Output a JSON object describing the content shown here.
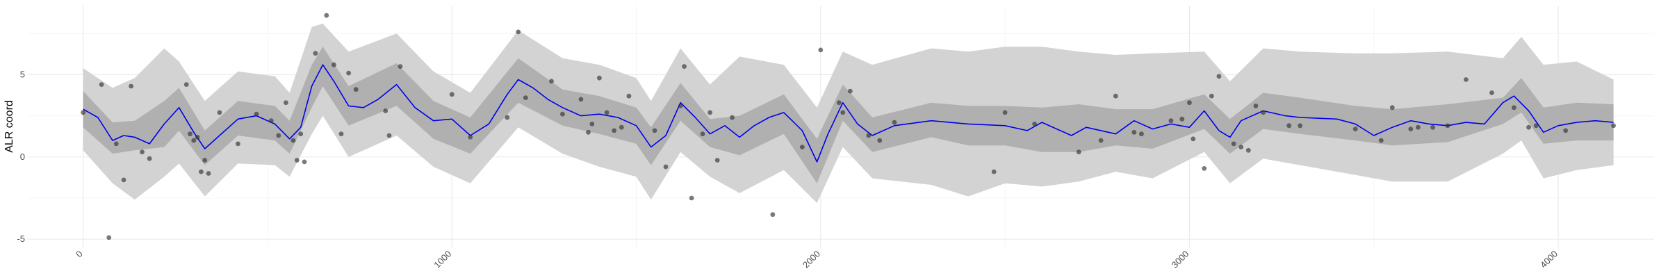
{
  "chart_data": {
    "type": "line",
    "title": "",
    "xlabel": "",
    "ylabel": "ALR coord",
    "xlim": [
      -150,
      4260
    ],
    "ylim": [
      -5.5,
      9.2
    ],
    "x_ticks": [
      0,
      1000,
      2000,
      3000,
      4000
    ],
    "x_tick_labels": [
      "0",
      "1000",
      "2000",
      "3000",
      "4000"
    ],
    "y_ticks": [
      -5,
      0,
      5
    ],
    "y_tick_labels": [
      "-5",
      "0",
      "5"
    ],
    "grid": true,
    "legend": "none",
    "colors": {
      "mean_line": "#0000ee",
      "band_outer": "#d3d3d3",
      "band_inner": "#b0b0b0",
      "points": "#333333",
      "grid_major": "#ebebeb",
      "grid_minor": "#f5f5f5"
    },
    "mean": {
      "x": [
        0,
        40,
        80,
        110,
        140,
        180,
        220,
        260,
        300,
        330,
        370,
        420,
        470,
        520,
        560,
        590,
        620,
        650,
        680,
        720,
        760,
        800,
        850,
        900,
        950,
        1000,
        1050,
        1100,
        1150,
        1180,
        1220,
        1260,
        1300,
        1350,
        1400,
        1450,
        1500,
        1540,
        1580,
        1620,
        1660,
        1700,
        1740,
        1780,
        1820,
        1860,
        1900,
        1950,
        1990,
        2020,
        2060,
        2100,
        2140,
        2200,
        2300,
        2400,
        2500,
        2560,
        2600,
        2680,
        2720,
        2800,
        2850,
        2900,
        2950,
        3000,
        3040,
        3080,
        3110,
        3140,
        3200,
        3260,
        3300,
        3400,
        3450,
        3500,
        3550,
        3600,
        3650,
        3700,
        3750,
        3800,
        3850,
        3880,
        3920,
        3960,
        4000,
        4050,
        4100,
        4150
      ],
      "y": [
        2.9,
        2.4,
        1.0,
        1.3,
        1.2,
        0.8,
        2.0,
        3.0,
        1.5,
        0.5,
        1.3,
        2.3,
        2.5,
        2.0,
        1.1,
        1.8,
        4.3,
        5.6,
        4.6,
        3.1,
        3.0,
        3.5,
        4.4,
        3.0,
        2.2,
        2.3,
        1.3,
        2.0,
        3.8,
        4.7,
        4.2,
        3.5,
        3.0,
        2.5,
        2.6,
        2.4,
        1.9,
        0.6,
        1.3,
        3.3,
        2.4,
        1.4,
        1.9,
        1.2,
        1.9,
        2.4,
        2.7,
        1.6,
        -0.3,
        1.4,
        3.3,
        2.0,
        1.3,
        1.9,
        2.2,
        2.0,
        1.9,
        1.6,
        2.1,
        1.3,
        1.8,
        1.4,
        2.2,
        1.7,
        2.0,
        1.8,
        2.8,
        1.6,
        1.2,
        2.2,
        2.8,
        2.5,
        2.4,
        2.3,
        2.0,
        1.3,
        1.8,
        2.2,
        2.0,
        1.9,
        2.1,
        2.0,
        3.3,
        3.7,
        2.8,
        1.5,
        1.9,
        2.1,
        2.2,
        2.1
      ]
    },
    "band_inner": {
      "x": [
        0,
        80,
        140,
        220,
        260,
        330,
        420,
        520,
        560,
        620,
        650,
        720,
        850,
        950,
        1050,
        1180,
        1300,
        1400,
        1500,
        1540,
        1620,
        1700,
        1780,
        1900,
        1990,
        2060,
        2140,
        2300,
        2400,
        2500,
        2600,
        2700,
        2800,
        2900,
        3040,
        3110,
        3200,
        3300,
        3450,
        3550,
        3700,
        3850,
        3900,
        3960,
        4050,
        4150
      ],
      "lower": [
        1.8,
        0.2,
        0.4,
        0.6,
        1.6,
        -0.5,
        1.3,
        1.0,
        0.2,
        3.0,
        4.3,
        1.9,
        3.1,
        1.1,
        0.2,
        3.3,
        1.9,
        1.4,
        0.8,
        -0.5,
        2.2,
        0.6,
        0.1,
        1.4,
        -1.6,
        2.2,
        0.3,
        1.2,
        0.7,
        0.7,
        0.3,
        0.3,
        0.7,
        0.5,
        1.7,
        0.2,
        1.7,
        1.4,
        1.0,
        0.7,
        0.9,
        2.0,
        2.7,
        0.8,
        1.0,
        1.0
      ],
      "upper": [
        4.0,
        2.1,
        2.2,
        3.4,
        4.2,
        1.6,
        3.4,
        3.1,
        2.2,
        5.6,
        6.7,
        4.3,
        5.7,
        3.4,
        2.4,
        6.0,
        4.1,
        3.7,
        3.0,
        1.8,
        4.5,
        2.3,
        2.5,
        3.8,
        1.1,
        4.4,
        2.4,
        3.3,
        3.1,
        3.1,
        3.0,
        3.2,
        2.9,
        2.9,
        3.8,
        2.3,
        3.9,
        3.6,
        3.1,
        2.9,
        3.2,
        3.6,
        4.8,
        3.0,
        3.3,
        3.2
      ]
    },
    "band_outer": {
      "x": [
        0,
        80,
        140,
        220,
        260,
        330,
        420,
        520,
        560,
        620,
        650,
        720,
        850,
        950,
        1050,
        1180,
        1300,
        1400,
        1500,
        1540,
        1620,
        1700,
        1780,
        1900,
        1990,
        2060,
        2140,
        2300,
        2400,
        2500,
        2600,
        2700,
        2800,
        2900,
        3040,
        3110,
        3200,
        3300,
        3450,
        3550,
        3700,
        3850,
        3900,
        3960,
        4050,
        4150
      ],
      "lower": [
        0.4,
        -1.6,
        -2.6,
        -1.2,
        -0.4,
        -2.4,
        -0.4,
        -0.5,
        -1.2,
        1.4,
        2.5,
        0.0,
        1.3,
        -0.6,
        -1.6,
        1.8,
        0.2,
        -0.6,
        -1.2,
        -2.6,
        0.3,
        -1.2,
        -2.2,
        -0.8,
        -2.8,
        0.6,
        -1.3,
        -1.7,
        -2.4,
        -1.6,
        -1.8,
        -1.5,
        -0.9,
        -1.3,
        0.3,
        -1.6,
        -0.1,
        -0.5,
        -1.1,
        -1.5,
        -1.5,
        0.2,
        1.0,
        -1.3,
        -0.8,
        -0.5
      ],
      "upper": [
        5.4,
        4.2,
        4.8,
        6.6,
        5.8,
        3.4,
        5.2,
        4.9,
        3.9,
        7.9,
        8.1,
        6.4,
        7.5,
        5.2,
        3.9,
        7.7,
        6.0,
        5.6,
        4.8,
        3.4,
        6.6,
        4.4,
        6.1,
        5.6,
        3.0,
        6.4,
        5.6,
        6.6,
        6.4,
        6.7,
        6.7,
        6.4,
        6.2,
        6.3,
        6.4,
        4.6,
        6.6,
        6.4,
        6.3,
        6.3,
        6.4,
        6.0,
        7.3,
        5.6,
        5.8,
        4.7
      ]
    },
    "points": {
      "x": [
        0,
        50,
        70,
        90,
        110,
        130,
        160,
        180,
        280,
        290,
        300,
        310,
        320,
        330,
        340,
        370,
        420,
        470,
        510,
        530,
        550,
        570,
        580,
        590,
        600,
        630,
        660,
        680,
        700,
        720,
        740,
        820,
        830,
        860,
        1000,
        1050,
        1150,
        1180,
        1200,
        1270,
        1300,
        1350,
        1370,
        1380,
        1400,
        1420,
        1440,
        1460,
        1480,
        1550,
        1580,
        1620,
        1630,
        1650,
        1680,
        1700,
        1720,
        1760,
        1870,
        1950,
        2000,
        2050,
        2060,
        2080,
        2130,
        2160,
        2200,
        2470,
        2500,
        2580,
        2700,
        2760,
        2800,
        2850,
        2870,
        2950,
        2980,
        3000,
        3010,
        3040,
        3060,
        3080,
        3120,
        3140,
        3160,
        3180,
        3200,
        3270,
        3300,
        3450,
        3520,
        3550,
        3600,
        3620,
        3660,
        3700,
        3750,
        3820,
        3880,
        3920,
        3940,
        4020,
        4150
      ],
      "y": [
        2.7,
        4.4,
        -4.9,
        0.8,
        -1.4,
        4.3,
        0.3,
        -0.1,
        4.4,
        1.4,
        1.0,
        1.2,
        -0.9,
        -0.2,
        -1.0,
        2.7,
        0.8,
        2.6,
        2.2,
        1.3,
        3.3,
        1.0,
        -0.2,
        1.4,
        -0.3,
        6.3,
        8.6,
        5.6,
        1.4,
        5.1,
        4.1,
        2.8,
        1.3,
        5.5,
        3.8,
        1.2,
        2.4,
        7.6,
        3.6,
        4.6,
        2.6,
        3.5,
        1.5,
        2.0,
        4.8,
        2.7,
        1.6,
        1.8,
        3.7,
        1.6,
        -0.6,
        3.1,
        5.5,
        -2.5,
        1.4,
        2.7,
        -0.2,
        2.4,
        -3.5,
        0.6,
        6.5,
        3.3,
        2.7,
        4.0,
        1.3,
        1.0,
        2.1,
        -0.9,
        2.7,
        2.0,
        0.3,
        1.0,
        3.7,
        1.5,
        1.4,
        2.2,
        2.3,
        3.3,
        1.1,
        -0.7,
        3.7,
        4.9,
        0.8,
        0.6,
        0.4,
        3.1,
        2.7,
        1.9,
        1.9,
        1.7,
        1.0,
        3.0,
        1.7,
        1.8,
        1.8,
        1.9,
        4.7,
        3.9,
        3.0,
        1.8,
        1.9,
        1.6,
        1.9
      ]
    }
  }
}
